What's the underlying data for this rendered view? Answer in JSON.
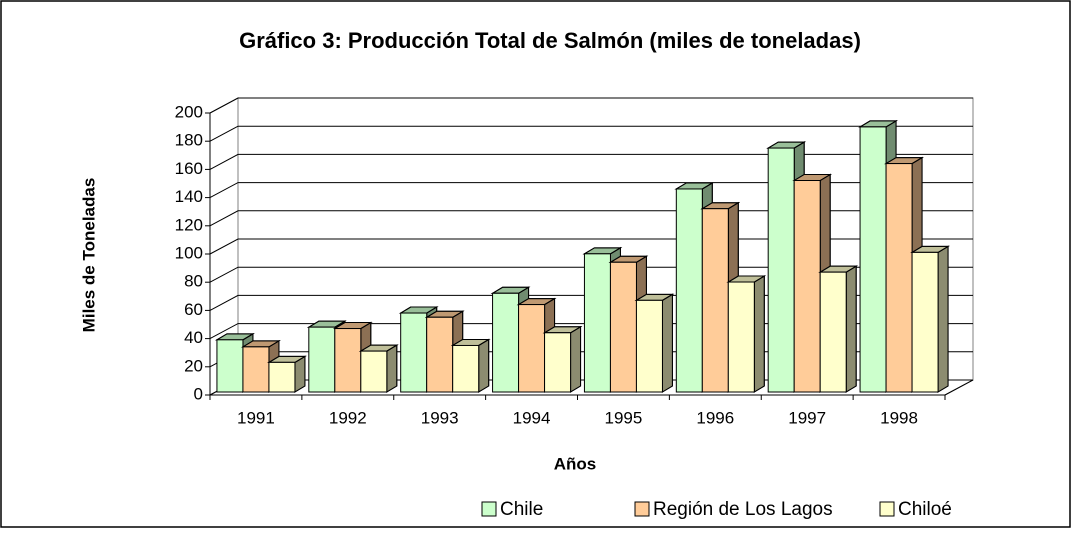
{
  "chart_data": {
    "type": "bar3d",
    "title": "Gráfico 3: Producción Total de Salmón (miles de toneladas)",
    "x_label": "Años",
    "y_label": "Miles de Toneladas",
    "categories": [
      "1991",
      "1992",
      "1993",
      "1994",
      "1995",
      "1996",
      "1997",
      "1998"
    ],
    "series": [
      {
        "name": "Chile",
        "color": "#ccffcc",
        "values": [
          37,
          46,
          56,
          70,
          98,
          144,
          173,
          188
        ]
      },
      {
        "name": "Región de Los Lagos",
        "color": "#ffcc99",
        "values": [
          32,
          45,
          53,
          62,
          92,
          130,
          150,
          162
        ]
      },
      {
        "name": "Chiloé",
        "color": "#ffffcc",
        "values": [
          21,
          29,
          33,
          42,
          65,
          78,
          85,
          99
        ]
      }
    ],
    "ylim": [
      0,
      200
    ],
    "yticks": [
      0,
      20,
      40,
      60,
      80,
      100,
      120,
      140,
      160,
      180,
      200
    ],
    "grid": true
  }
}
